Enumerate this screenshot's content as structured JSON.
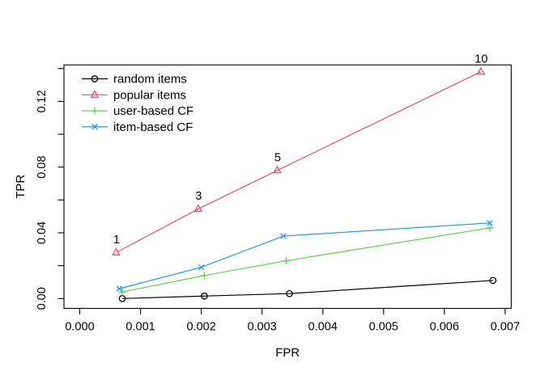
{
  "chart_data": {
    "type": "line",
    "title": "",
    "xlabel": "FPR",
    "ylabel": "TPR",
    "xlim": [
      -0.00026,
      0.0071
    ],
    "ylim": [
      -0.006,
      0.1422
    ],
    "grid": false,
    "legend_position": "top-left",
    "legend_border": false,
    "x_ticks": {
      "values": [
        0.0,
        0.001,
        0.002,
        0.003,
        0.004,
        0.005,
        0.006,
        0.007
      ],
      "labels": [
        "0.000",
        "0.001",
        "0.002",
        "0.003",
        "0.004",
        "0.005",
        "0.006",
        "0.007"
      ]
    },
    "y_ticks": {
      "values": [
        0.0,
        0.02,
        0.04,
        0.06,
        0.08,
        0.1,
        0.12,
        0.14
      ],
      "labels": [
        "0.00",
        "",
        "0.04",
        "",
        "0.08",
        "",
        "0.12",
        ""
      ]
    },
    "series": [
      {
        "name": "random items",
        "color": "#000000",
        "marker": "circle-open",
        "x": [
          0.0007,
          0.00205,
          0.00345,
          0.0068
        ],
        "y": [
          0.0,
          0.0015,
          0.003,
          0.011
        ],
        "point_labels": []
      },
      {
        "name": "popular items",
        "color": "#DF536B",
        "marker": "triangle-open",
        "x": [
          0.0006,
          0.00195,
          0.00325,
          0.0066
        ],
        "y": [
          0.028,
          0.0545,
          0.078,
          0.138
        ],
        "point_labels": [
          "1",
          "3",
          "5",
          "10"
        ]
      },
      {
        "name": "user-based CF",
        "color": "#61D04F",
        "marker": "plus",
        "x": [
          0.0007,
          0.00205,
          0.0034,
          0.00675
        ],
        "y": [
          0.004,
          0.014,
          0.023,
          0.043
        ],
        "point_labels": []
      },
      {
        "name": "item-based CF",
        "color": "#2297E6",
        "marker": "cross",
        "x": [
          0.00065,
          0.002,
          0.00335,
          0.00675
        ],
        "y": [
          0.006,
          0.019,
          0.038,
          0.046
        ],
        "point_labels": []
      }
    ],
    "colors": {
      "axis": "#000000",
      "background": "#ffffff"
    }
  }
}
